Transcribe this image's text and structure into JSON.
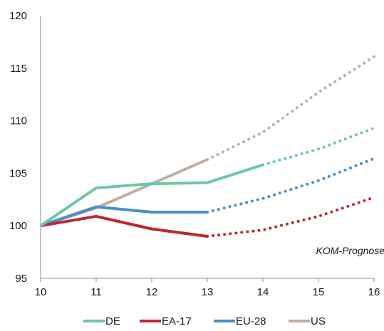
{
  "chart_data": {
    "type": "line",
    "x": [
      10,
      11,
      12,
      13,
      14,
      15,
      16
    ],
    "xlim": [
      10,
      16
    ],
    "ylim": [
      95,
      120
    ],
    "yticks": [
      95,
      100,
      105,
      110,
      115,
      120
    ],
    "grid": false,
    "legend_position": "bottom",
    "annotation": "KOM-Prognose",
    "series": [
      {
        "name": "DE",
        "color": "#6cc7a4",
        "actual_x": [
          10,
          11,
          12,
          13,
          14
        ],
        "actual": [
          100,
          103.6,
          104.0,
          104.1,
          105.8
        ],
        "forecast_x": [
          14,
          15,
          16
        ],
        "forecast": [
          105.8,
          107.3,
          109.3
        ]
      },
      {
        "name": "EA-17",
        "color": "#c0262d",
        "actual_x": [
          10,
          11,
          12,
          13
        ],
        "actual": [
          100,
          100.9,
          99.7,
          99.0
        ],
        "forecast_x": [
          13,
          14,
          15,
          16
        ],
        "forecast": [
          99.0,
          99.6,
          100.9,
          102.7
        ]
      },
      {
        "name": "EU-28",
        "color": "#4a8fc6",
        "actual_x": [
          10,
          11,
          12,
          13
        ],
        "actual": [
          100,
          101.8,
          101.3,
          101.3
        ],
        "forecast_x": [
          13,
          14,
          15,
          16
        ],
        "forecast": [
          101.3,
          102.6,
          104.3,
          106.4
        ]
      },
      {
        "name": "US",
        "color": "#bfaea3",
        "actual_x": [
          10,
          11,
          12,
          13
        ],
        "actual": [
          100,
          101.7,
          104.0,
          106.3
        ],
        "forecast_x": [
          13,
          14,
          15,
          16
        ],
        "forecast": [
          106.3,
          108.9,
          112.7,
          116.1
        ]
      }
    ]
  }
}
